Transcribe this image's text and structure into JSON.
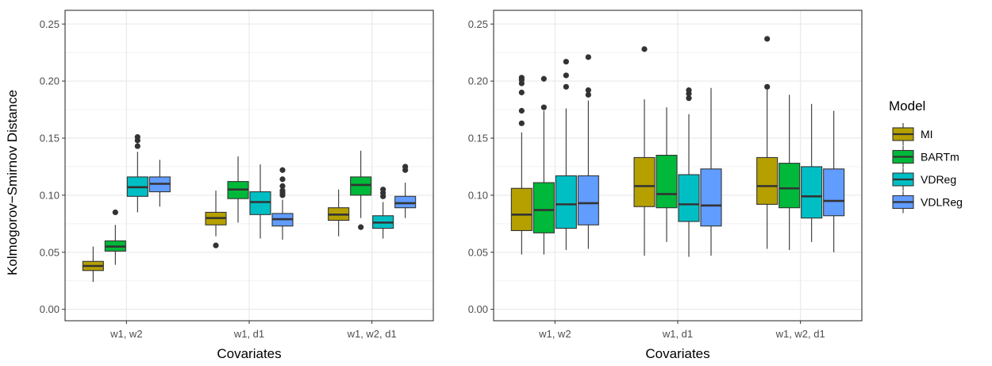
{
  "chart_data": {
    "type": "boxplot",
    "ylabel": "Kolmogorov−Smirnov Distance",
    "ylim": [
      -0.01,
      0.262
    ],
    "yticks": [
      "0.00",
      "0.05",
      "0.10",
      "0.15",
      "0.20",
      "0.25"
    ],
    "grid": true,
    "legend": {
      "title": "Model",
      "position": "right",
      "entries": [
        {
          "name": "MI",
          "color": "#b5a000"
        },
        {
          "name": "BARTm",
          "color": "#00b839"
        },
        {
          "name": "VDReg",
          "color": "#00bfc4"
        },
        {
          "name": "VDLReg",
          "color": "#619cff"
        }
      ]
    },
    "panels": [
      {
        "xlabel": "Covariates",
        "categories": [
          "w1, w2",
          "w1, d1",
          "w1, w2, d1"
        ],
        "groups": [
          [
            {
              "model": "MI",
              "min": 0.024,
              "q1": 0.034,
              "median": 0.038,
              "q3": 0.042,
              "max": 0.055,
              "outliers": []
            },
            {
              "model": "BARTm",
              "min": 0.039,
              "q1": 0.051,
              "median": 0.055,
              "q3": 0.06,
              "max": 0.074,
              "outliers": [
                0.085
              ]
            },
            {
              "model": "VDReg",
              "min": 0.085,
              "q1": 0.099,
              "median": 0.107,
              "q3": 0.116,
              "max": 0.138,
              "outliers": [
                0.143,
                0.148,
                0.151
              ]
            },
            {
              "model": "VDLReg",
              "min": 0.09,
              "q1": 0.103,
              "median": 0.11,
              "q3": 0.116,
              "max": 0.131,
              "outliers": []
            }
          ],
          [
            {
              "model": "MI",
              "min": 0.064,
              "q1": 0.074,
              "median": 0.08,
              "q3": 0.085,
              "max": 0.104,
              "outliers": [
                0.056
              ]
            },
            {
              "model": "BARTm",
              "min": 0.076,
              "q1": 0.097,
              "median": 0.105,
              "q3": 0.112,
              "max": 0.134,
              "outliers": []
            },
            {
              "model": "VDReg",
              "min": 0.062,
              "q1": 0.083,
              "median": 0.094,
              "q3": 0.103,
              "max": 0.127,
              "outliers": []
            },
            {
              "model": "VDLReg",
              "min": 0.061,
              "q1": 0.073,
              "median": 0.079,
              "q3": 0.084,
              "max": 0.096,
              "outliers": [
                0.1,
                0.102,
                0.104,
                0.108,
                0.114,
                0.122
              ]
            }
          ],
          [
            {
              "model": "MI",
              "min": 0.064,
              "q1": 0.078,
              "median": 0.083,
              "q3": 0.089,
              "max": 0.105,
              "outliers": []
            },
            {
              "model": "BARTm",
              "min": 0.08,
              "q1": 0.1,
              "median": 0.109,
              "q3": 0.116,
              "max": 0.139,
              "outliers": [
                0.072
              ]
            },
            {
              "model": "VDReg",
              "min": 0.062,
              "q1": 0.071,
              "median": 0.076,
              "q3": 0.082,
              "max": 0.094,
              "outliers": [
                0.099,
                0.102,
                0.105
              ]
            },
            {
              "model": "VDLReg",
              "min": 0.08,
              "q1": 0.089,
              "median": 0.093,
              "q3": 0.099,
              "max": 0.111,
              "outliers": [
                0.122,
                0.125
              ]
            }
          ]
        ]
      },
      {
        "xlabel": "Covariates",
        "categories": [
          "w1, w2",
          "w1, d1",
          "w1, w2, d1"
        ],
        "groups": [
          [
            {
              "model": "MI",
              "min": 0.048,
              "q1": 0.069,
              "median": 0.083,
              "q3": 0.106,
              "max": 0.155,
              "outliers": [
                0.163,
                0.174,
                0.19,
                0.198,
                0.201,
                0.203
              ]
            },
            {
              "model": "BARTm",
              "min": 0.048,
              "q1": 0.067,
              "median": 0.087,
              "q3": 0.111,
              "max": 0.174,
              "outliers": [
                0.177,
                0.202
              ]
            },
            {
              "model": "VDReg",
              "min": 0.052,
              "q1": 0.071,
              "median": 0.092,
              "q3": 0.117,
              "max": 0.176,
              "outliers": [
                0.195,
                0.205,
                0.217
              ]
            },
            {
              "model": "VDLReg",
              "min": 0.053,
              "q1": 0.074,
              "median": 0.093,
              "q3": 0.117,
              "max": 0.183,
              "outliers": [
                0.188,
                0.192,
                0.221
              ]
            }
          ],
          [
            {
              "model": "MI",
              "min": 0.047,
              "q1": 0.09,
              "median": 0.108,
              "q3": 0.133,
              "max": 0.184,
              "outliers": [
                0.228
              ]
            },
            {
              "model": "BARTm",
              "min": 0.059,
              "q1": 0.089,
              "median": 0.101,
              "q3": 0.135,
              "max": 0.177,
              "outliers": []
            },
            {
              "model": "VDReg",
              "min": 0.046,
              "q1": 0.077,
              "median": 0.092,
              "q3": 0.118,
              "max": 0.171,
              "outliers": [
                0.185,
                0.189,
                0.192
              ]
            },
            {
              "model": "VDLReg",
              "min": 0.047,
              "q1": 0.073,
              "median": 0.091,
              "q3": 0.123,
              "max": 0.194,
              "outliers": []
            }
          ],
          [
            {
              "model": "MI",
              "min": 0.053,
              "q1": 0.092,
              "median": 0.108,
              "q3": 0.133,
              "max": 0.193,
              "outliers": [
                0.195,
                0.237
              ]
            },
            {
              "model": "BARTm",
              "min": 0.052,
              "q1": 0.089,
              "median": 0.106,
              "q3": 0.128,
              "max": 0.188,
              "outliers": []
            },
            {
              "model": "VDReg",
              "min": 0.059,
              "q1": 0.08,
              "median": 0.099,
              "q3": 0.125,
              "max": 0.18,
              "outliers": []
            },
            {
              "model": "VDLReg",
              "min": 0.05,
              "q1": 0.082,
              "median": 0.095,
              "q3": 0.123,
              "max": 0.174,
              "outliers": []
            }
          ]
        ]
      }
    ]
  }
}
